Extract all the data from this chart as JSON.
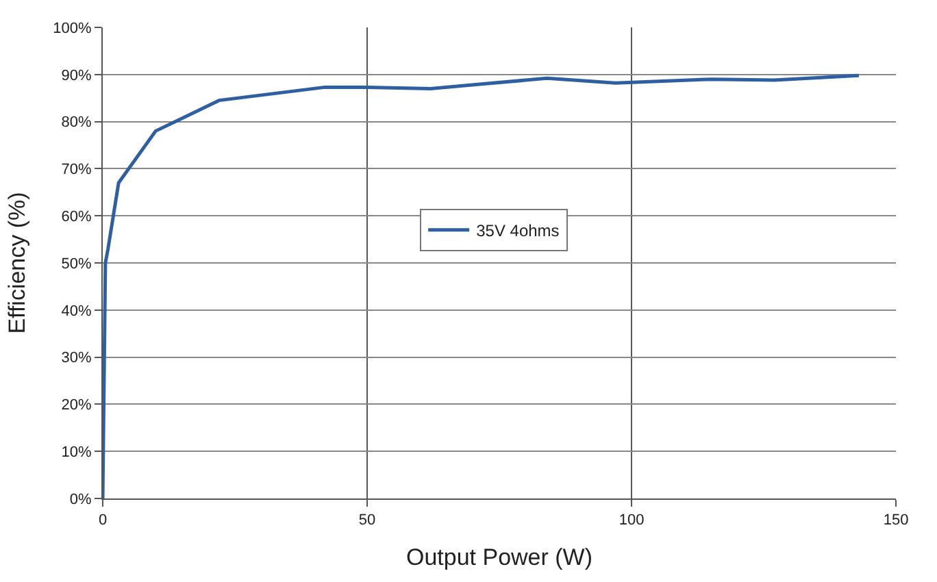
{
  "chart_data": {
    "type": "line",
    "xlabel": "Output Power (W)",
    "ylabel": "Efficiency (%)",
    "x": [
      0,
      0.5,
      1,
      3,
      10,
      22,
      42,
      50,
      62,
      72,
      84,
      97,
      115,
      127,
      143
    ],
    "series": [
      {
        "name": "35V 4ohms",
        "color": "#2e5fa3",
        "values": [
          0,
          50,
          53,
          67,
          78,
          84.5,
          87.3,
          87.3,
          87,
          88,
          89.2,
          88.2,
          89,
          88.8,
          89.8
        ]
      }
    ],
    "xlim": [
      0,
      150
    ],
    "xticks": [
      0,
      50,
      100,
      150
    ],
    "ylim": [
      0,
      100
    ],
    "yticks": [
      {
        "value": 0,
        "label": "0%"
      },
      {
        "value": 10,
        "label": "10%"
      },
      {
        "value": 20,
        "label": "20%"
      },
      {
        "value": 30,
        "label": "30%"
      },
      {
        "value": 40,
        "label": "40%"
      },
      {
        "value": 50,
        "label": "50%"
      },
      {
        "value": 60,
        "label": "60%"
      },
      {
        "value": 70,
        "label": "70%"
      },
      {
        "value": 80,
        "label": "80%"
      },
      {
        "value": 90,
        "label": "90%"
      },
      {
        "value": 100,
        "label": "100%"
      }
    ],
    "grid": true,
    "legend": "center",
    "marker": "none",
    "line_style": "solid"
  }
}
